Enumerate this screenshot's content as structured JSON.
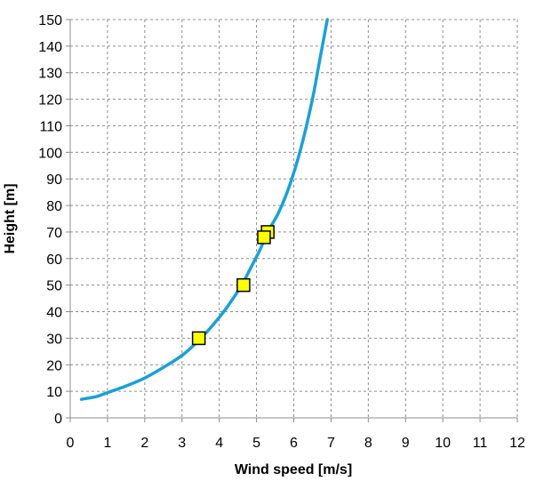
{
  "chart_data": {
    "type": "line",
    "title": "",
    "xlabel": "Wind speed [m/s]",
    "ylabel": "Height [m]",
    "xlim": [
      0,
      12
    ],
    "ylim": [
      0,
      150
    ],
    "x_ticks": [
      0,
      1,
      2,
      3,
      4,
      5,
      6,
      7,
      8,
      9,
      10,
      11,
      12
    ],
    "y_ticks": [
      0,
      10,
      20,
      30,
      40,
      50,
      60,
      70,
      80,
      90,
      100,
      110,
      120,
      130,
      140,
      150
    ],
    "x_tick_labels": [
      "0",
      "1",
      "2",
      "3",
      "4",
      "5",
      "6",
      "7",
      "8",
      "9",
      "10",
      "11",
      "12"
    ],
    "y_tick_labels": [
      "0",
      "10",
      "20",
      "30",
      "40",
      "50",
      "60",
      "70",
      "80",
      "90",
      "100",
      "110",
      "120",
      "130",
      "140",
      "150"
    ],
    "grid": true,
    "legend": "none",
    "series": [
      {
        "kind": "line",
        "color": "#1aa0d8",
        "points": [
          [
            0.3,
            7
          ],
          [
            0.7,
            8
          ],
          [
            1.0,
            9.5
          ],
          [
            1.5,
            12
          ],
          [
            2.0,
            15
          ],
          [
            2.5,
            19
          ],
          [
            3.0,
            23.5
          ],
          [
            3.4,
            28.5
          ],
          [
            3.8,
            34.5
          ],
          [
            4.2,
            41.5
          ],
          [
            4.6,
            50
          ],
          [
            4.9,
            58
          ],
          [
            5.1,
            63.5
          ],
          [
            5.3,
            70
          ],
          [
            5.6,
            77.5
          ],
          [
            5.9,
            88
          ],
          [
            6.2,
            102
          ],
          [
            6.5,
            120
          ],
          [
            6.7,
            135
          ],
          [
            6.9,
            150
          ]
        ]
      },
      {
        "kind": "scatter",
        "marker": "square",
        "color": "#ffff00",
        "edge_color": "#000000",
        "points": [
          [
            3.45,
            30
          ],
          [
            4.65,
            50
          ],
          [
            5.3,
            70
          ],
          [
            5.2,
            68
          ]
        ]
      }
    ]
  }
}
